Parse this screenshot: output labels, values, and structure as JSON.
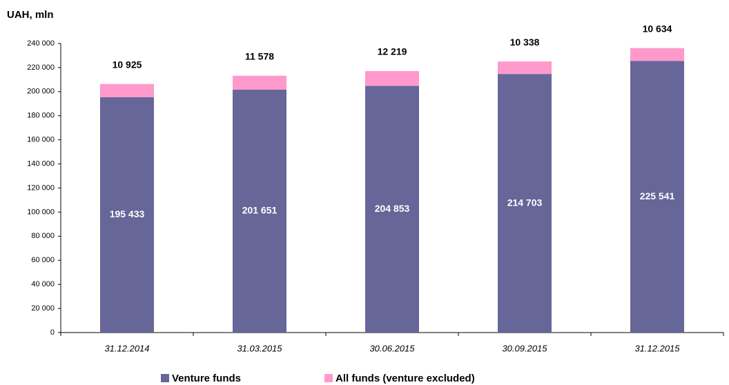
{
  "chart_data": {
    "type": "stacked_bar",
    "y_label": "UAH, mln",
    "categories": [
      "31.12.2014",
      "31.03.2015",
      "30.06.2015",
      "30.09.2015",
      "31.12.2015"
    ],
    "series": [
      {
        "name": "Venture funds",
        "color": "#666699",
        "values": [
          195433,
          201651,
          204853,
          214703,
          225541
        ],
        "value_labels": [
          "195 433",
          "201 651",
          "204 853",
          "214 703",
          "225 541"
        ]
      },
      {
        "name": "All funds (venture excluded)",
        "color": "#ff99cc",
        "values": [
          10925,
          11578,
          12219,
          10338,
          10634
        ],
        "value_labels": [
          "10 925",
          "11 578",
          "12 219",
          "10 338",
          "10 634"
        ]
      }
    ],
    "ylim": [
      0,
      240000
    ],
    "yticks": [
      0,
      {
        "value": 20000,
        "label": "20 000"
      },
      {
        "value": 40000,
        "label": "40 000"
      },
      {
        "value": 60000,
        "label": "60 000"
      },
      {
        "value": 80000,
        "label": "80 000"
      },
      {
        "value": 100000,
        "label": "100 000"
      },
      {
        "value": 120000,
        "label": "120 000"
      },
      {
        "value": 140000,
        "label": "140 000"
      },
      {
        "value": 160000,
        "label": "160 000"
      },
      {
        "value": 180000,
        "label": "180 000"
      },
      {
        "value": 200000,
        "label": "200 000"
      },
      {
        "value": 220000,
        "label": "220 000"
      },
      {
        "value": 240000,
        "label": "240 000"
      }
    ],
    "grid": false,
    "legend": "bottom"
  }
}
